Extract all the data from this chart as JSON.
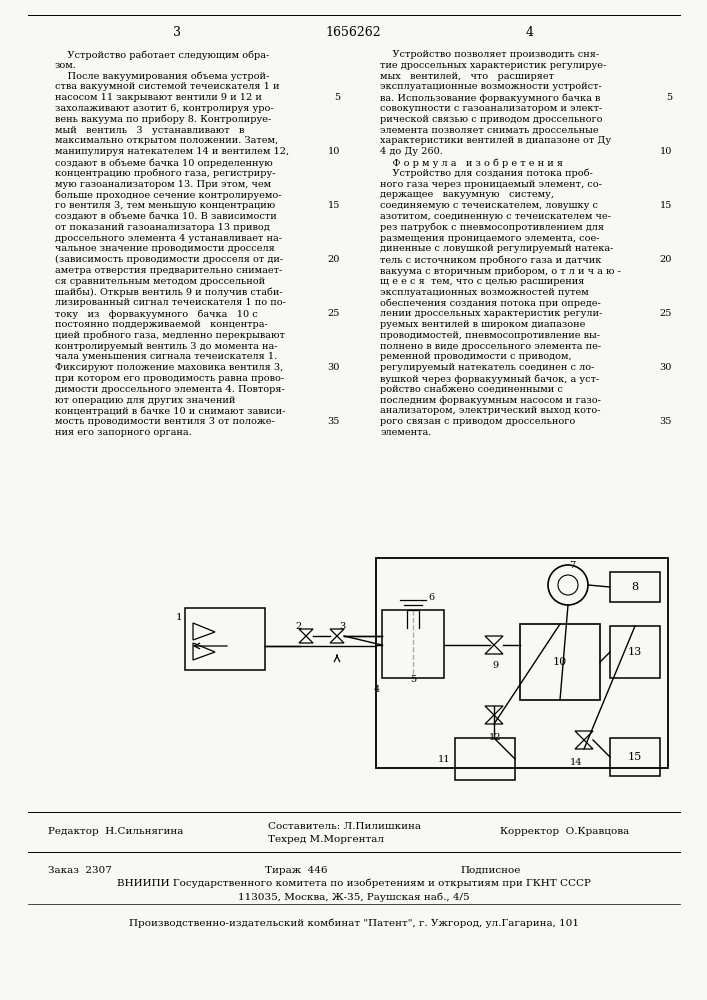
{
  "bg_color": "#f5f5f0",
  "text_color": "#1a1a1a",
  "page_num_left": "3",
  "page_num_center": "1656262",
  "page_num_right": "4"
}
